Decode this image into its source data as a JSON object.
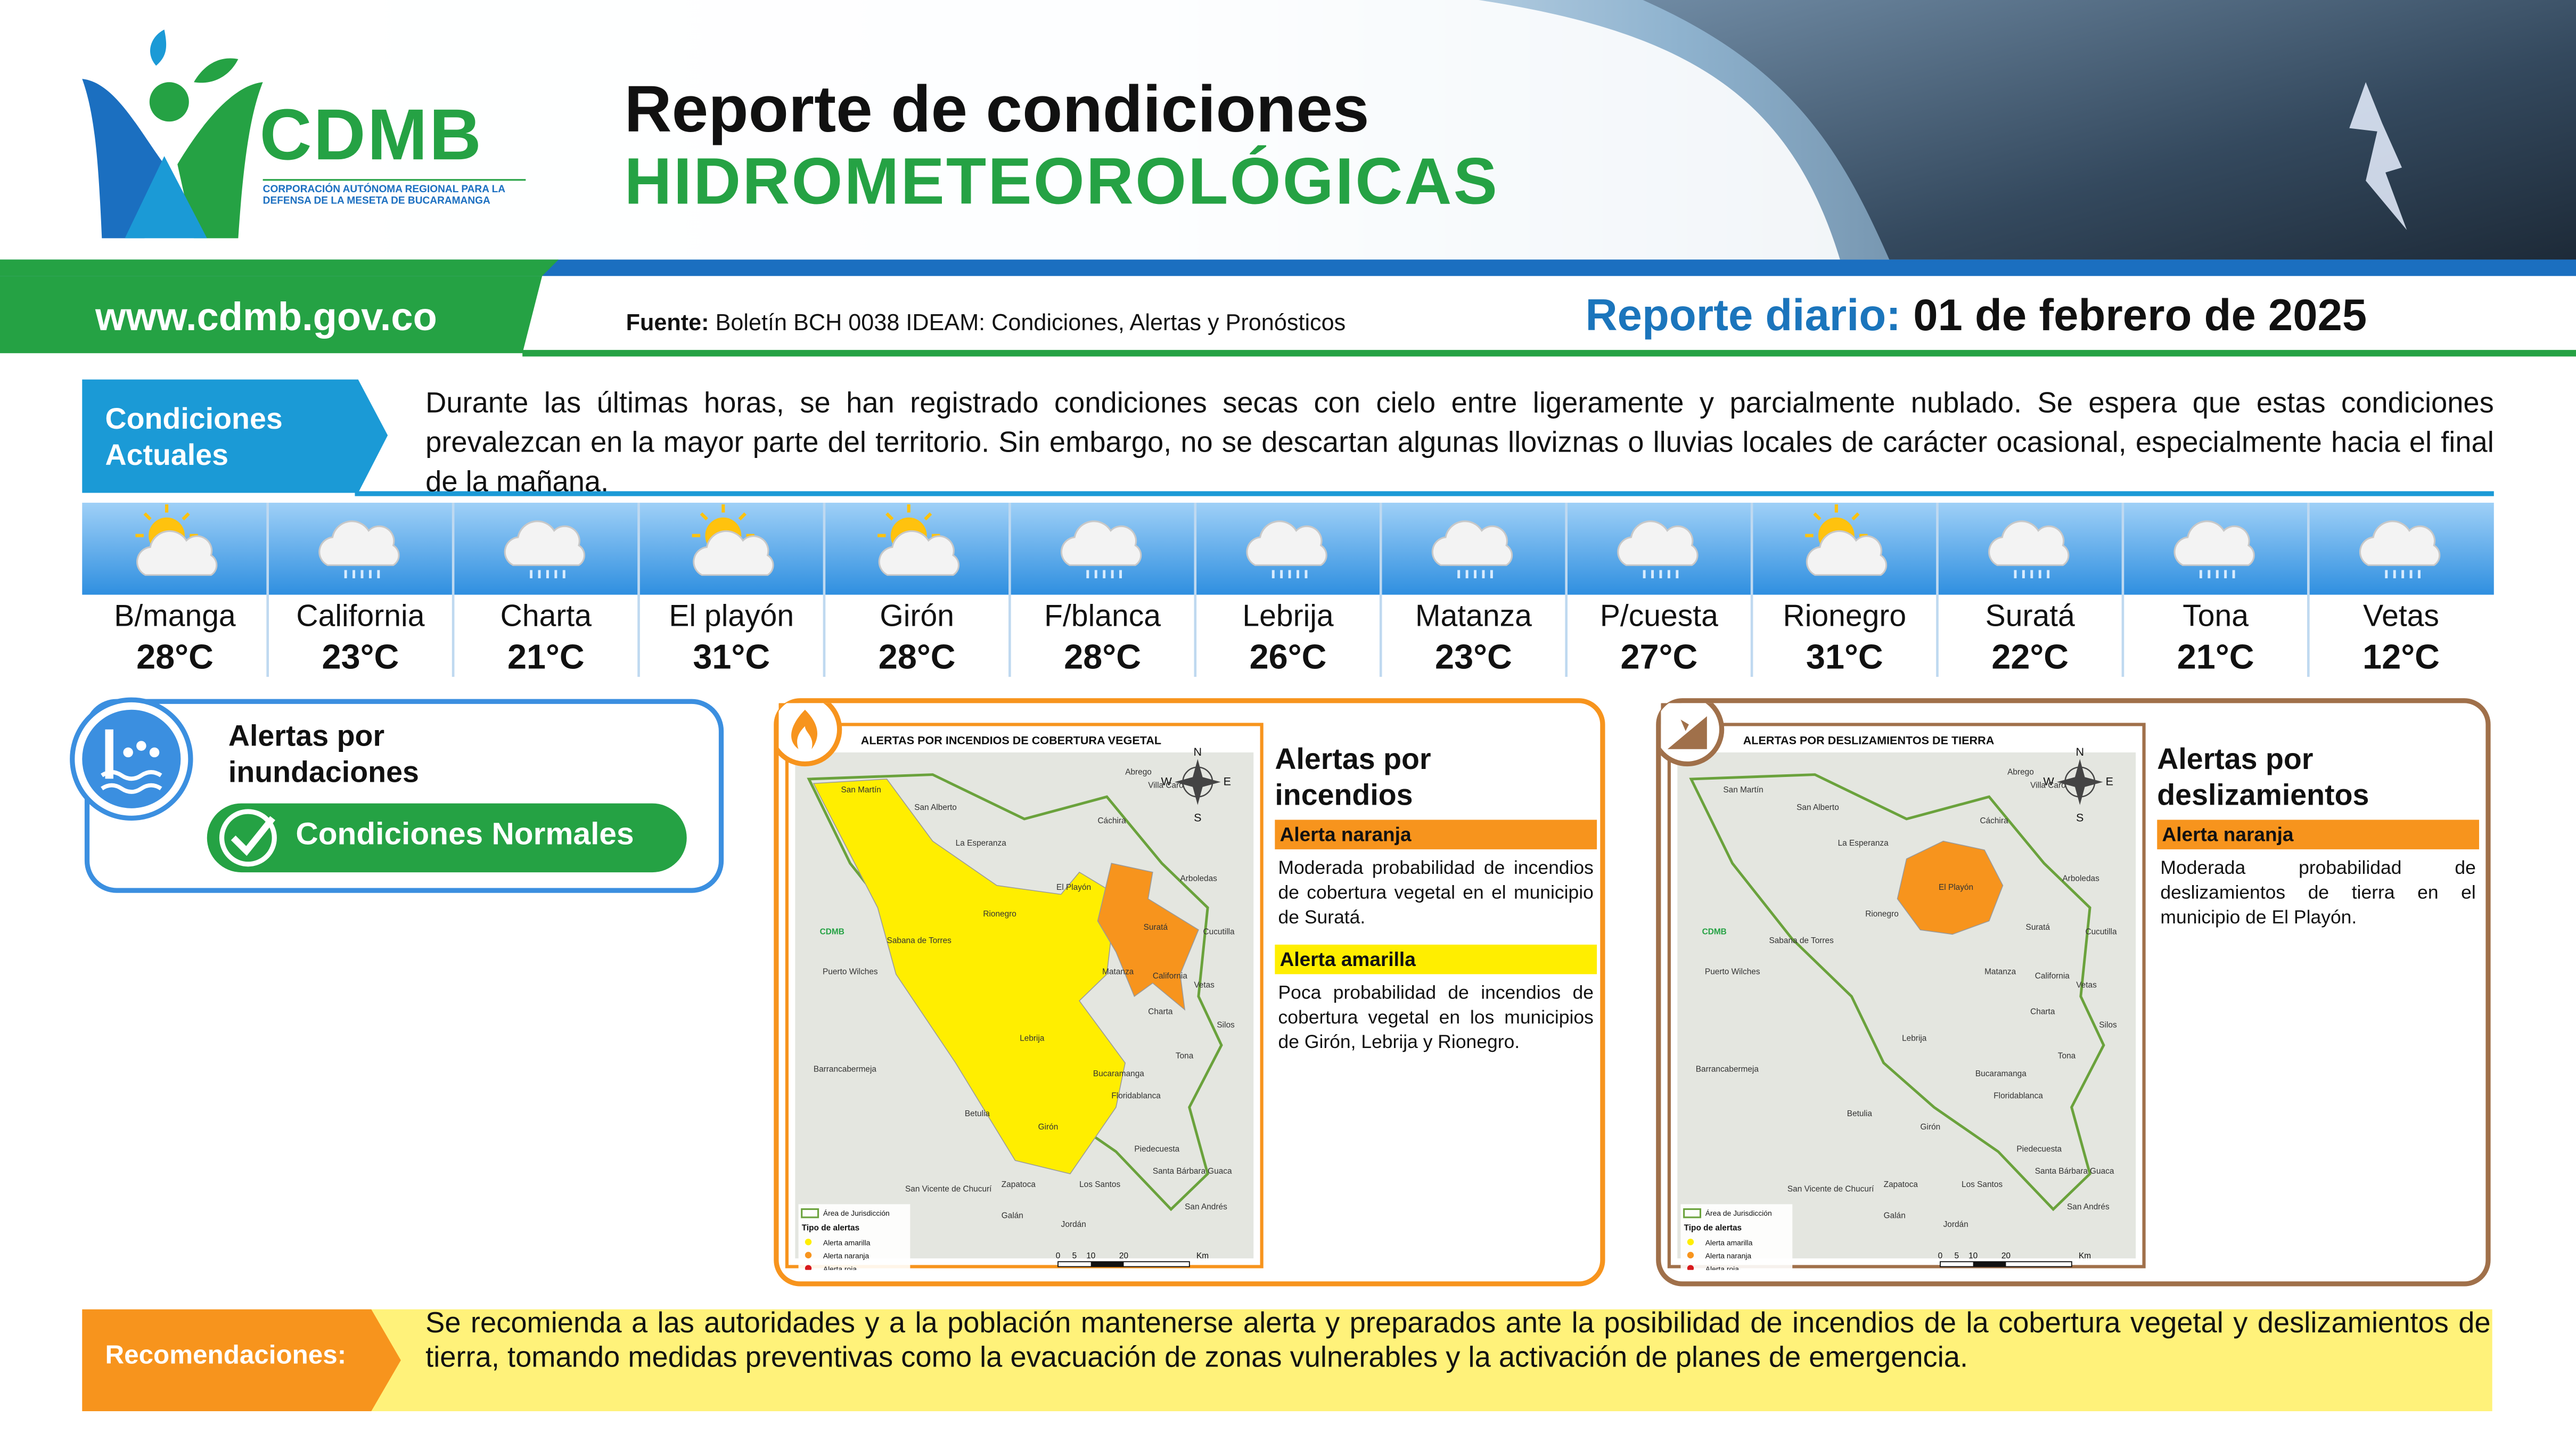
{
  "header": {
    "logo_name": "CDMB",
    "logo_subtitle": "CORPORACIÓN AUTÓNOMA REGIONAL PARA LA DEFENSA DE LA MESETA DE BUCARAMANGA",
    "title_line1": "Reporte de condiciones",
    "title_line2": "HIDROMETEOROLÓGICAS"
  },
  "banner": {
    "url": "www.cdmb.gov.co",
    "source_label": "Fuente:",
    "source_text": "Boletín BCH 0038 IDEAM: Condiciones, Alertas y Pronósticos",
    "report_label": "Reporte diario:",
    "report_date": "01 de febrero de 2025"
  },
  "conditions": {
    "label": "Condiciones Actuales",
    "text": "Durante las últimas horas, se han registrado condiciones secas con cielo entre ligeramente y parcialmente nublado. Se espera que estas condiciones prevalezcan en la mayor parte del territorio. Sin embargo, no se descartan algunas lloviznas o lluvias locales de carácter ocasional, especialmente hacia el final de la mañana."
  },
  "forecast": [
    {
      "name": "B/manga",
      "temp": "28°C",
      "sky": "partly-cloudy"
    },
    {
      "name": "California",
      "temp": "23°C",
      "sky": "rain"
    },
    {
      "name": "Charta",
      "temp": "21°C",
      "sky": "rain"
    },
    {
      "name": "El playón",
      "temp": "31°C",
      "sky": "partly-cloudy"
    },
    {
      "name": "Girón",
      "temp": "28°C",
      "sky": "partly-cloudy"
    },
    {
      "name": "F/blanca",
      "temp": "28°C",
      "sky": "rain"
    },
    {
      "name": "Lebrija",
      "temp": "26°C",
      "sky": "rain"
    },
    {
      "name": "Matanza",
      "temp": "23°C",
      "sky": "rain"
    },
    {
      "name": "P/cuesta",
      "temp": "27°C",
      "sky": "rain"
    },
    {
      "name": "Rionegro",
      "temp": "31°C",
      "sky": "partly-cloudy"
    },
    {
      "name": "Suratá",
      "temp": "22°C",
      "sky": "rain"
    },
    {
      "name": "Tona",
      "temp": "21°C",
      "sky": "rain"
    },
    {
      "name": "Vetas",
      "temp": "12°C",
      "sky": "rain"
    }
  ],
  "flood": {
    "title": "Alertas por inundaciones",
    "status": "Condiciones Normales"
  },
  "fire": {
    "map_title": "ALERTAS POR INCENDIOS DE COBERTURA VEGETAL",
    "heading": "Alertas por incendios",
    "alerts": [
      {
        "level": "Alerta naranja",
        "color": "#f7941d",
        "text": "Moderada probabilidad de incendios de cobertura vegetal en el municipio de Suratá."
      },
      {
        "level": "Alerta amarilla",
        "color": "#ffee00",
        "text": "Poca probabilidad de incendios de cobertura vegetal en los municipios de Girón, Lebrija y Rionegro."
      }
    ]
  },
  "landslide": {
    "map_title": "ALERTAS POR DESLIZAMIENTOS DE TIERRA",
    "heading": "Alertas por deslizamientos",
    "alerts": [
      {
        "level": "Alerta naranja",
        "color": "#f7941d",
        "text": "Moderada probabilidad de deslizamientos de tierra en el municipio de El Playón."
      }
    ]
  },
  "map": {
    "places": [
      "San Martín",
      "San Alberto",
      "La Esperanza",
      "Abrego",
      "Villa Caro",
      "Cáchira",
      "Arboledas",
      "El Playón",
      "Rionegro",
      "Suratá",
      "Cucutilla",
      "Sabana de Torres",
      "Puerto Wilches",
      "Matanza",
      "California",
      "Vetas",
      "Charta",
      "Silos",
      "Tona",
      "Lebrija",
      "Bucaramanga",
      "Floridablanca",
      "Barrancabermeja",
      "Betulia",
      "Girón",
      "Piedecuesta",
      "Santa Bárbara",
      "Guaca",
      "San Vicente de Chucurí",
      "Zapatoca",
      "Los Santos",
      "San Andrés",
      "Galán",
      "Jordán"
    ],
    "legend_area": "Área de Jurisdicción",
    "legend_title": "Tipo de alertas",
    "legend_items": [
      "Alerta amarilla",
      "Alerta naranja",
      "Alerta roja"
    ],
    "compass": [
      "N",
      "E",
      "S",
      "W"
    ],
    "scale": [
      "0",
      "5",
      "10",
      "20",
      "Km"
    ]
  },
  "recommendations": {
    "label": "Recomendaciones:",
    "text": "Se recomienda a las autoridades y a la población mantenerse alerta y preparados ante la posibilidad de incendios de la cobertura vegetal y deslizamientos de tierra, tomando medidas preventivas como la evacuación de zonas vulnerables y la activación de planes de emergencia."
  }
}
